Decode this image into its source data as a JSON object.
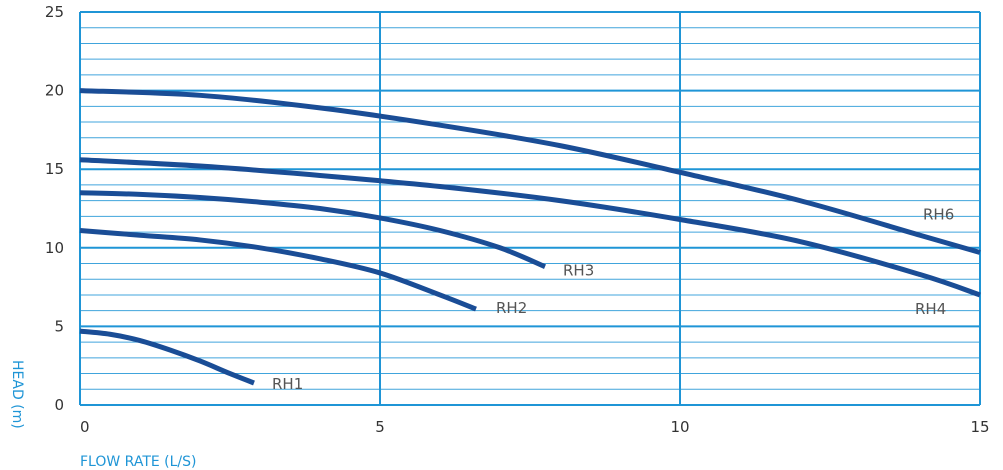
{
  "colors": {
    "grid_major": "#1f95d6",
    "grid_minor": "#1f95d6",
    "curve": "#1a4d96",
    "axis_title": "#1f95d6",
    "tick_text": "#333333",
    "label_text": "#555555"
  },
  "chart_data": {
    "type": "line",
    "title": "",
    "xlabel": "FLOW RATE (L/S)",
    "ylabel": "HEAD (m)",
    "xlim": [
      0,
      15
    ],
    "ylim": [
      0,
      25
    ],
    "x_ticks": [
      "0",
      "5",
      "10",
      "15"
    ],
    "y_ticks": [
      "0",
      "5",
      "10",
      "15",
      "20",
      "25"
    ],
    "grid": true,
    "legend": "none",
    "series": [
      {
        "name": "RH1",
        "x": [
          0,
          0.5,
          1,
          1.5,
          2,
          2.5,
          2.9
        ],
        "y": [
          4.7,
          4.5,
          4.1,
          3.5,
          2.8,
          2.0,
          1.4
        ]
      },
      {
        "name": "RH2",
        "x": [
          0,
          1,
          2,
          3,
          4,
          5,
          6,
          6.6
        ],
        "y": [
          11.1,
          10.8,
          10.5,
          10.0,
          9.3,
          8.4,
          7.0,
          6.1
        ]
      },
      {
        "name": "RH3",
        "x": [
          0,
          1,
          2,
          3,
          4,
          5,
          6,
          7,
          7.75
        ],
        "y": [
          13.5,
          13.4,
          13.2,
          12.9,
          12.5,
          11.9,
          11.1,
          10.0,
          8.8
        ]
      },
      {
        "name": "RH4",
        "x": [
          0,
          2,
          4,
          6,
          8,
          10,
          12,
          14,
          15
        ],
        "y": [
          15.6,
          15.2,
          14.6,
          13.9,
          13.0,
          11.8,
          10.4,
          8.3,
          7.0
        ]
      },
      {
        "name": "RH6",
        "x": [
          0,
          2,
          4,
          6,
          8,
          10,
          12,
          14,
          15
        ],
        "y": [
          20.0,
          19.7,
          18.9,
          17.8,
          16.5,
          14.8,
          13.0,
          10.8,
          9.7
        ]
      }
    ]
  }
}
